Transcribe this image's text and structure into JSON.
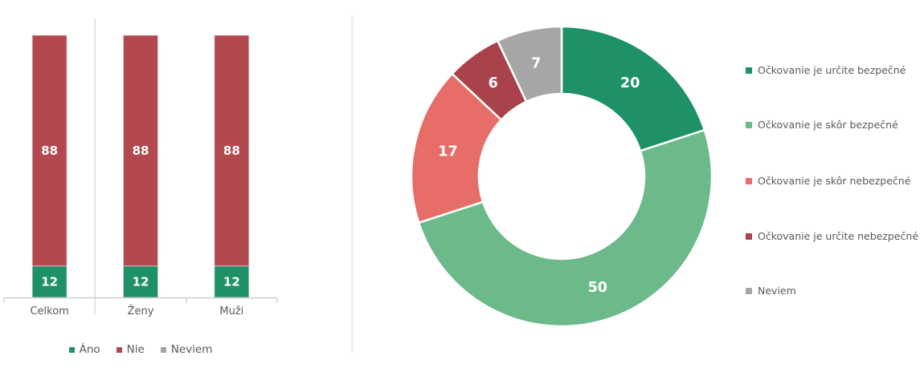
{
  "page": {
    "background": "#ffffff",
    "text_color": "#595959",
    "axis_color": "#c6c6c6",
    "gridline_color": "#d9d9d9",
    "panel_divider_color": "#efefef"
  },
  "chart_data": [
    {
      "type": "bar",
      "subtype": "stacked-column-100",
      "categories": [
        "Celkom",
        "Ženy",
        "Muži"
      ],
      "series": [
        {
          "name": "Áno",
          "color": "#1f9167",
          "values": [
            12,
            12,
            12
          ]
        },
        {
          "name": "Nie",
          "color": "#b3494f",
          "values": [
            88,
            88,
            88
          ]
        },
        {
          "name": "Neviem",
          "color": "#a6a6a6",
          "values": [
            0,
            0,
            0
          ]
        }
      ],
      "ylim": [
        0,
        100
      ],
      "grid": false,
      "legend_position": "bottom",
      "data_labels": true,
      "data_label_color": "#ffffff"
    },
    {
      "type": "pie",
      "subtype": "donut",
      "labels": [
        "Očkovanie je určite bezpečné",
        "Očkovanie je skôr bezpečné",
        "Očkovanie je skôr nebezpečné",
        "Očkovanie je určite nebezpečné",
        "Neviem"
      ],
      "values": [
        20,
        50,
        17,
        6,
        7
      ],
      "colors": [
        "#1f9167",
        "#6cba8a",
        "#e76e68",
        "#a8434b",
        "#a6a6a6"
      ],
      "start_angle_deg": 0,
      "direction": "clockwise",
      "legend_position": "right",
      "data_labels": true,
      "data_label_color": "#ffffff"
    }
  ]
}
